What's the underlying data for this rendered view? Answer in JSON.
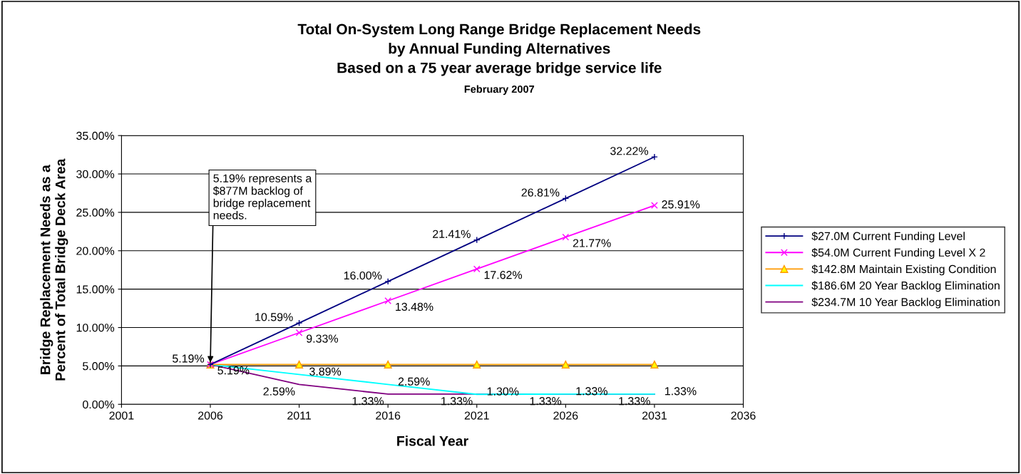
{
  "chart_data": {
    "type": "line",
    "title": "Total On-System Long Range Bridge Replacement Needs\nby Annual Funding Alternatives\nBased on a 75 year average bridge service life",
    "subtitle": "February 2007",
    "xlabel": "Fiscal Year",
    "ylabel": "Bridge Replacement Needs as a\nPercent of Total Bridge Deck Area",
    "x": [
      2006,
      2011,
      2016,
      2021,
      2026,
      2031
    ],
    "series": [
      {
        "name": "$27.0M Current Funding Level",
        "color": "#000080",
        "marker": "plus",
        "values": [
          5.19,
          10.59,
          16.0,
          21.41,
          26.81,
          32.22
        ],
        "value_labels": [
          "5.19%",
          "10.59%",
          "16.00%",
          "21.41%",
          "26.81%",
          "32.22%"
        ]
      },
      {
        "name": "$54.0M Current Funding Level X 2",
        "color": "#ff00ff",
        "marker": "cross",
        "values": [
          5.19,
          9.33,
          13.48,
          17.62,
          21.77,
          25.91
        ],
        "value_labels": [
          "5.19%",
          "9.33%",
          "13.48%",
          "17.62%",
          "21.77%",
          "25.91%"
        ]
      },
      {
        "name": "$142.8M Maintain Existing Condition",
        "color": "#ff9900",
        "marker": "triangle",
        "values": [
          5.19,
          5.19,
          5.19,
          5.19,
          5.19,
          5.19
        ]
      },
      {
        "name": "$186.6M 20 Year Backlog Elimination",
        "color": "#00ffff",
        "marker": "none",
        "values": [
          5.19,
          3.89,
          2.59,
          1.3,
          1.33,
          1.33
        ],
        "value_labels": [
          null,
          "3.89%",
          "2.59%",
          "1.30%",
          "1.33%",
          "1.33%"
        ]
      },
      {
        "name": "$234.7M 10 Year Backlog Elimination",
        "color": "#800080",
        "marker": "none",
        "values": [
          5.19,
          2.59,
          1.33,
          1.33,
          1.33,
          1.33
        ],
        "value_labels": [
          null,
          "2.59%",
          "1.33%",
          "1.33%",
          "1.33%",
          "1.33%"
        ]
      }
    ],
    "xlim": [
      2001,
      2036
    ],
    "xticks": [
      2001,
      2006,
      2011,
      2016,
      2021,
      2026,
      2031,
      2036
    ],
    "ylim": [
      0,
      35
    ],
    "yticks": [
      {
        "value": 0,
        "label": "0.00%"
      },
      {
        "value": 5,
        "label": "5.00%"
      },
      {
        "value": 10,
        "label": "10.00%"
      },
      {
        "value": 15,
        "label": "15.00%"
      },
      {
        "value": 20,
        "label": "20.00%"
      },
      {
        "value": 25,
        "label": "25.00%"
      },
      {
        "value": 30,
        "label": "30.00%"
      },
      {
        "value": 35,
        "label": "35.00%"
      }
    ],
    "annotations": [
      {
        "text": "5.19% represents a\n$877M backlog of\nbridge replacement\nneeds.",
        "x": 2006,
        "y": 5.19
      }
    ],
    "grid": "y",
    "legend": "right",
    "line_style": "solid"
  }
}
